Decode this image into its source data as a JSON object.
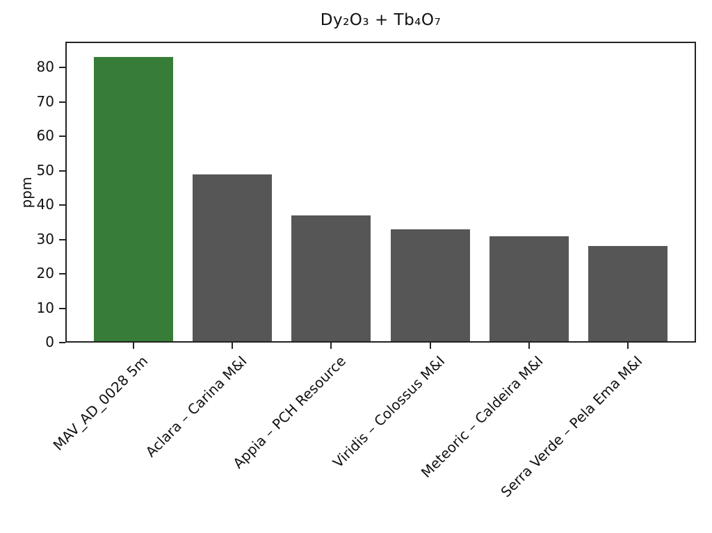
{
  "page": {
    "background": "#ffffff"
  },
  "chart_data": {
    "type": "bar",
    "title": "Dy₂O₃ + Tb₄O₇",
    "xlabel": "",
    "ylabel": "ppm",
    "categories": [
      "MAV_AD_0028 5m",
      "Aclara – Carina M&I",
      "Appia – PCH Resource",
      "Viridis – Colossus M&I",
      "Meteoric – Caldeira M&I",
      "Serra Verde – Pela Ema M&I"
    ],
    "values": [
      83,
      49,
      37,
      33,
      31,
      28
    ],
    "bar_colors": [
      "#377d37",
      "#565656",
      "#565656",
      "#565656",
      "#565656",
      "#565656"
    ],
    "highlight_color": "#377d37",
    "default_bar_color": "#565656",
    "axis_color": "#222222",
    "text_color": "#111111",
    "ylim": [
      0,
      87.5
    ],
    "yticks": [
      0,
      10,
      20,
      30,
      40,
      50,
      60,
      70,
      80
    ],
    "grid": false,
    "legend": null,
    "tick_label_rotation_deg": 45
  }
}
